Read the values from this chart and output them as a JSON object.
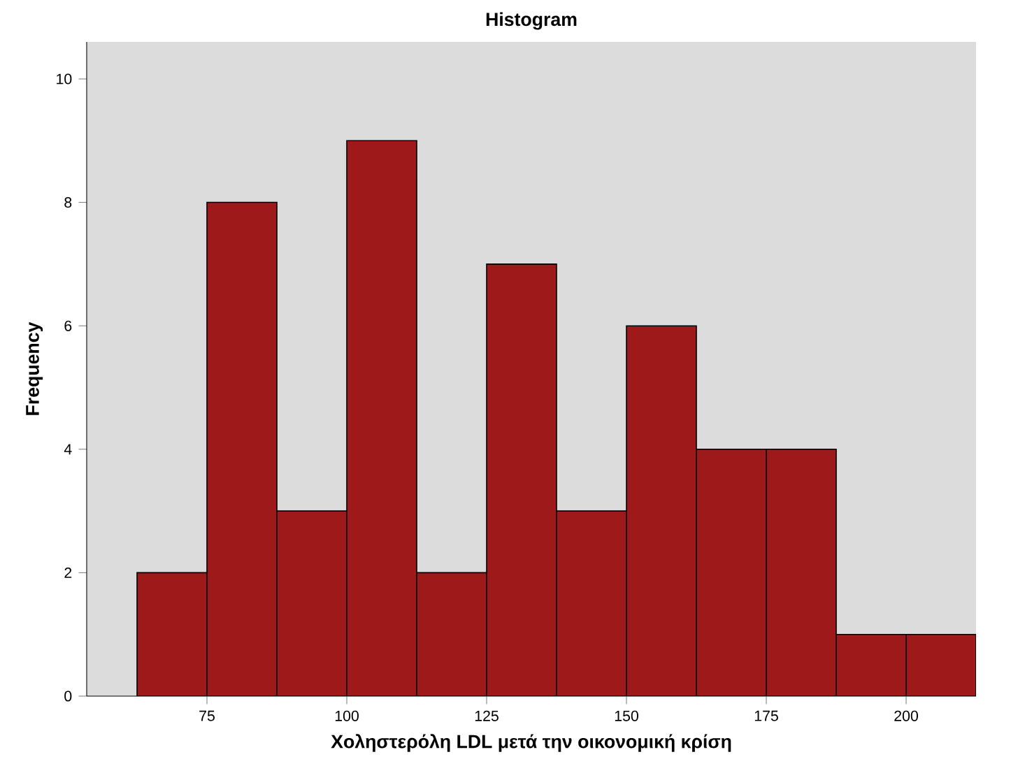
{
  "chart_data": {
    "type": "histogram",
    "title": "Histogram",
    "xlabel": "Χοληστερόλη LDL μετά την οικονομική κρίση",
    "ylabel": "Frequency",
    "bins": [
      62.5,
      75,
      87.5,
      100,
      112.5,
      125,
      137.5,
      150,
      162.5,
      175,
      187.5,
      200,
      212.5
    ],
    "values": [
      2,
      8,
      3,
      9,
      2,
      7,
      3,
      6,
      4,
      4,
      1,
      1
    ],
    "color": "#9e1a1a",
    "xlim": [
      53.5,
      212.5
    ],
    "ylim": [
      0,
      10.6
    ],
    "xticks": [
      75,
      100,
      125,
      150,
      175,
      200
    ],
    "yticks": [
      0,
      2,
      4,
      6,
      8,
      10
    ]
  }
}
